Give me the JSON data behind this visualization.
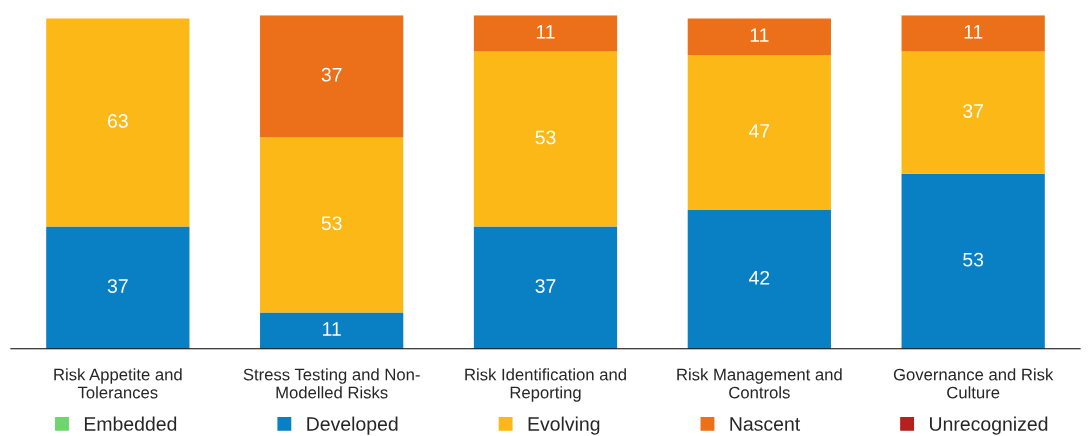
{
  "chart_data": {
    "type": "bar",
    "stacked": true,
    "legend": "bottom",
    "grid": false,
    "categories": [
      "Risk Appetite and Tolerances",
      "Stress Testing and Non-Modelled Risks",
      "Risk Identification and Reporting",
      "Risk Management and Controls",
      "Governance and Risk Culture"
    ],
    "series": [
      {
        "name": "Embedded",
        "color": "#6fd66f",
        "values": [
          0,
          0,
          0,
          0,
          0
        ],
        "value_labels": [
          null,
          null,
          null,
          null,
          null
        ]
      },
      {
        "name": "Developed",
        "color": "#0a80c4",
        "values": [
          37,
          11,
          37,
          42,
          53
        ],
        "value_labels": [
          "37",
          "11",
          "37",
          "42",
          "53"
        ]
      },
      {
        "name": "Evolving",
        "color": "#fbb817",
        "values": [
          63,
          53,
          53,
          47,
          37
        ],
        "value_labels": [
          "63",
          "53",
          "53",
          "47",
          "37"
        ]
      },
      {
        "name": "Nascent",
        "color": "#ec7019",
        "values": [
          0,
          37,
          11,
          11,
          11
        ],
        "value_labels": [
          null,
          "37",
          "11",
          "11",
          "11"
        ]
      },
      {
        "name": "Unrecognized",
        "color": "#b3221e",
        "values": [
          0,
          0,
          0,
          0,
          0
        ],
        "value_labels": [
          null,
          null,
          null,
          null,
          null
        ]
      }
    ]
  }
}
